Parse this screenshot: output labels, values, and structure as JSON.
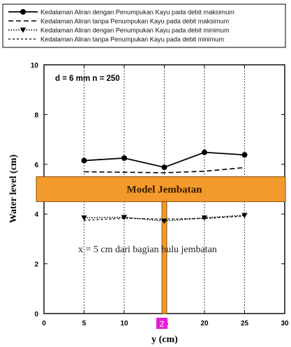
{
  "chart_data": {
    "type": "line",
    "xlabel": "y (cm)",
    "ylabel": "Water level (cm)",
    "xlim": [
      0,
      30
    ],
    "ylim": [
      0,
      10
    ],
    "x_ticks": [
      0,
      5,
      10,
      15,
      20,
      25,
      30
    ],
    "y_ticks": [
      0,
      2,
      4,
      6,
      8,
      10
    ],
    "grid": "vertical dotted lines at x = 5, 10, 15, 20, 25",
    "legend_position": "top, above plot",
    "annotation": "d = 6 mm  n = 250",
    "bridge": {
      "label": "Model Jembatan",
      "deck_y_range": [
        4.5,
        5.5
      ],
      "pier_x_range": [
        14.7,
        15.3
      ],
      "color": "#f39a2c"
    },
    "note": "x = 5 cm dari bagian hulu jembatan",
    "marker_label": "2",
    "marker_color": "#e31ed2",
    "x": [
      5,
      10,
      15,
      20,
      25
    ],
    "series": [
      {
        "name": "Kedalaman Aliran dengan Penumpukan Kayu pada debit maksimum",
        "style": "solid",
        "marker": "circle",
        "values": [
          6.15,
          6.25,
          5.88,
          6.48,
          6.38
        ]
      },
      {
        "name": "Kedalaman Aliran tanpa Penumpukan Kayu pada debit maksimum",
        "style": "dashed",
        "marker": "none",
        "values": [
          5.7,
          5.68,
          5.66,
          5.72,
          5.87
        ]
      },
      {
        "name": "Kedalaman Aliran dengan Penumpukan Kayu pada debit minimum",
        "style": "dotted",
        "marker": "triangle-down",
        "values": [
          3.85,
          3.87,
          3.72,
          3.85,
          3.95
        ]
      },
      {
        "name": "Kedalaman Aliran tanpa Penumpukan Kayu pada debit minimum",
        "style": "short-dashed",
        "marker": "none",
        "values": [
          3.75,
          3.83,
          3.8,
          3.82,
          3.92
        ]
      }
    ]
  }
}
